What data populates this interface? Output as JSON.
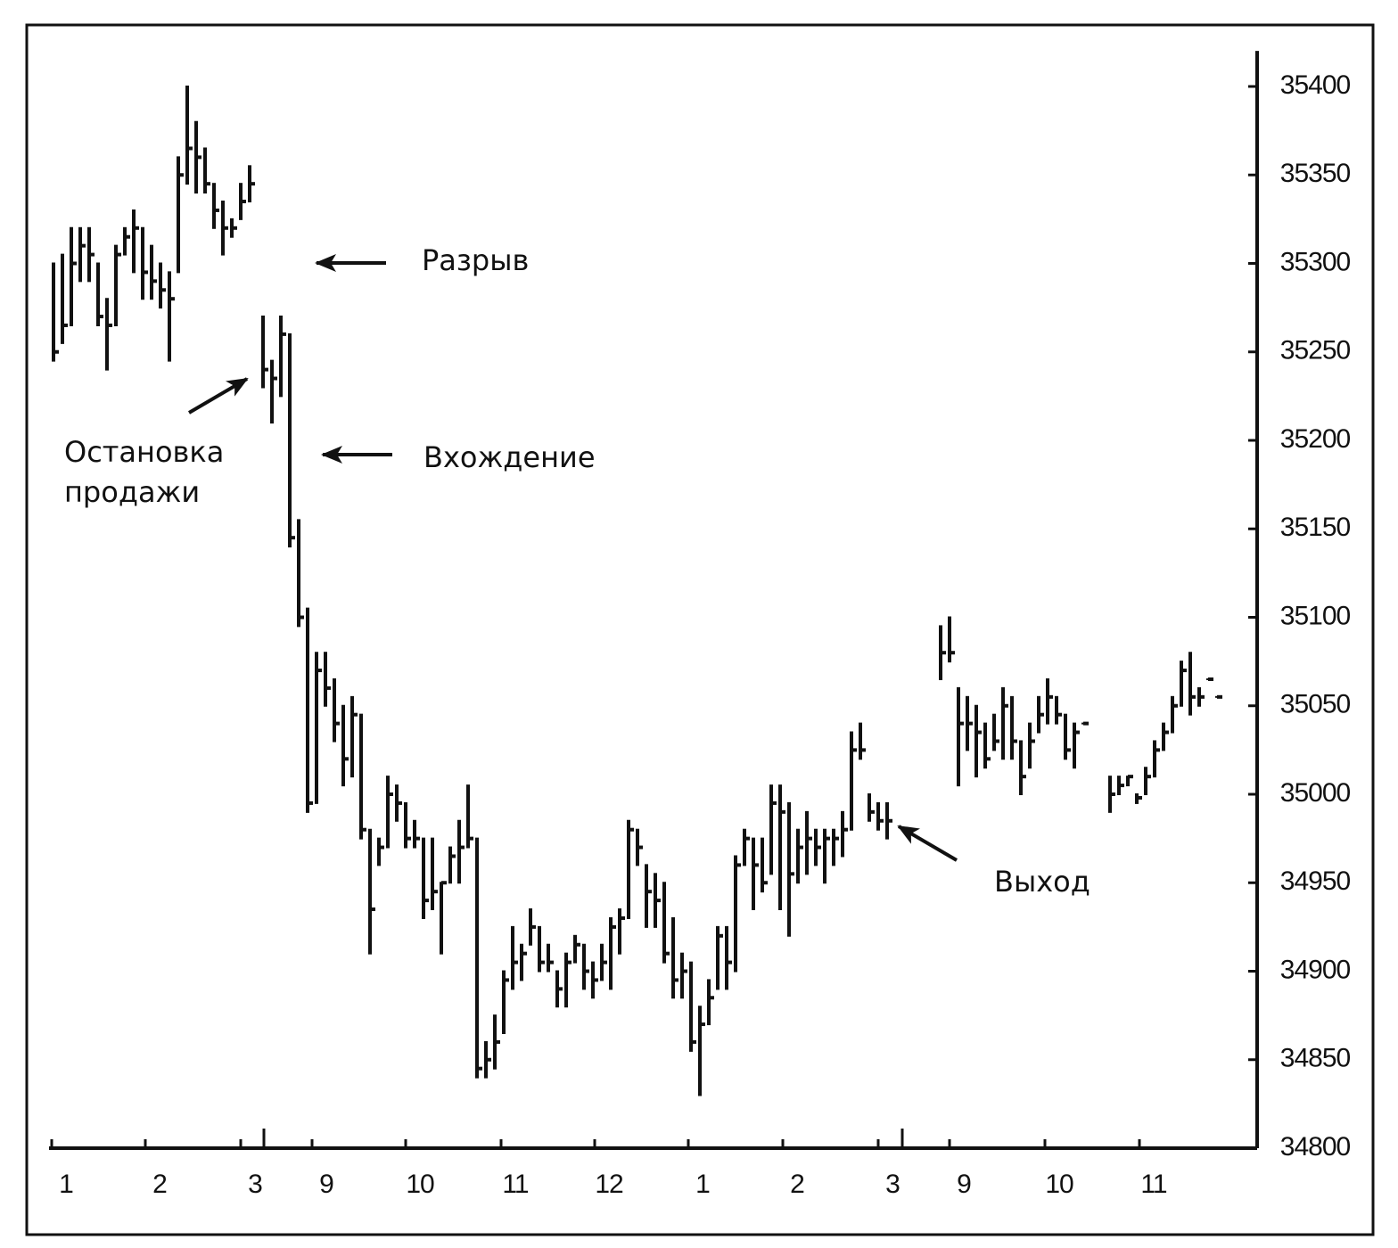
{
  "chart_data": {
    "type": "ohlc",
    "x": [
      0.5,
      1.5,
      2.5,
      3.5,
      4.5,
      5.5,
      6.5,
      7.5,
      8.5,
      9.5,
      10.5,
      11.5,
      12.5,
      13.5,
      14.5,
      15.5,
      16.5,
      17.5,
      18.5,
      19.5,
      20.5,
      21.5,
      22.5,
      24,
      25,
      26,
      27,
      28,
      29,
      30,
      31,
      32,
      33,
      34,
      35,
      36,
      37,
      38,
      39,
      40,
      41,
      42,
      43,
      44,
      45,
      46,
      47,
      48,
      49,
      50,
      51,
      52,
      53,
      54,
      55,
      56,
      57,
      58,
      59,
      60,
      61,
      62,
      63,
      64,
      65,
      66,
      67,
      68,
      69,
      70,
      71,
      72,
      73,
      74,
      75,
      76,
      77,
      78,
      79,
      80,
      81,
      82,
      83,
      84,
      85,
      86,
      87,
      88,
      89,
      90,
      91,
      92,
      93,
      94,
      100,
      101,
      102,
      103,
      104,
      105,
      106,
      107,
      108,
      109,
      110,
      111,
      112,
      113,
      114,
      115,
      116,
      119,
      120,
      121,
      122,
      123,
      124,
      125,
      126,
      127,
      128,
      129,
      130,
      131
    ],
    "high": [
      35300,
      35305,
      35320,
      35320,
      35320,
      35300,
      35280,
      35310,
      35320,
      35330,
      35320,
      35310,
      35300,
      35295,
      35360,
      35400,
      35380,
      35365,
      35345,
      35335,
      35325,
      35345,
      35355,
      35270,
      35245,
      35270,
      35260,
      35155,
      35105,
      35080,
      35080,
      35065,
      35050,
      35055,
      35045,
      34980,
      34975,
      35010,
      35005,
      34995,
      34985,
      34975,
      34975,
      34950,
      34970,
      34985,
      35005,
      34975,
      34860,
      34875,
      34900,
      34925,
      34915,
      34935,
      34925,
      34915,
      34900,
      34910,
      34920,
      34915,
      34905,
      34915,
      34930,
      34935,
      34985,
      34980,
      34960,
      34955,
      34950,
      34930,
      34910,
      34905,
      34880,
      34895,
      34925,
      34925,
      34965,
      34980,
      34975,
      34975,
      35005,
      35005,
      34995,
      34980,
      34990,
      34980,
      34980,
      34980,
      34990,
      35035,
      35040,
      35000,
      34995,
      34995,
      35095,
      35100,
      35060,
      35055,
      35050,
      35040,
      35045,
      35060,
      35055,
      35030,
      35040,
      35055,
      35065,
      35055,
      35045,
      35040,
      35040,
      35010,
      35010,
      35010,
      35000,
      35015,
      35030,
      35040,
      35055,
      35075,
      35080,
      35060,
      35065,
      35055
    ],
    "low": [
      35245,
      35255,
      35265,
      35290,
      35290,
      35265,
      35240,
      35265,
      35305,
      35295,
      35280,
      35280,
      35275,
      35245,
      35295,
      35345,
      35340,
      35340,
      35320,
      35305,
      35315,
      35325,
      35335,
      35230,
      35210,
      35225,
      35140,
      35095,
      34990,
      34995,
      35050,
      35030,
      35005,
      35010,
      34975,
      34910,
      34960,
      34970,
      34985,
      34970,
      34970,
      34930,
      34935,
      34910,
      34950,
      34950,
      34970,
      34840,
      34840,
      34845,
      34865,
      34890,
      34895,
      34915,
      34900,
      34900,
      34880,
      34880,
      34905,
      34890,
      34885,
      34895,
      34890,
      34910,
      34930,
      34960,
      34925,
      34925,
      34905,
      34885,
      34885,
      34855,
      34830,
      34870,
      34890,
      34890,
      34900,
      34960,
      34935,
      34945,
      34955,
      34935,
      34920,
      34950,
      34955,
      34960,
      34950,
      34960,
      34965,
      34980,
      35020,
      34985,
      34980,
      34975,
      35065,
      35075,
      35005,
      35025,
      35010,
      35015,
      35025,
      35020,
      35020,
      35000,
      35015,
      35035,
      35040,
      35040,
      35020,
      35015,
      35040,
      34990,
      35000,
      35005,
      34995,
      35000,
      35010,
      35025,
      35035,
      35050,
      35045,
      35050,
      35065,
      35055
    ],
    "close": [
      35250,
      35265,
      35300,
      35310,
      35305,
      35270,
      35265,
      35305,
      35315,
      35320,
      35295,
      35290,
      35285,
      35280,
      35350,
      35365,
      35360,
      35345,
      35330,
      35320,
      35320,
      35335,
      35345,
      35240,
      35235,
      35260,
      35145,
      35100,
      34995,
      35070,
      35060,
      35040,
      35020,
      35045,
      34980,
      34935,
      34970,
      35000,
      34995,
      34975,
      34975,
      34940,
      34945,
      34950,
      34965,
      34970,
      34975,
      34845,
      34850,
      34860,
      34895,
      34905,
      34910,
      34925,
      34905,
      34905,
      34890,
      34905,
      34915,
      34900,
      34895,
      34905,
      34925,
      34930,
      34980,
      34970,
      34945,
      34940,
      34910,
      34895,
      34900,
      34860,
      34870,
      34885,
      34920,
      34905,
      34960,
      34975,
      34960,
      34950,
      34995,
      34990,
      34955,
      34970,
      34975,
      34970,
      34975,
      34975,
      34980,
      35025,
      35025,
      34990,
      34985,
      34985,
      35080,
      35080,
      35040,
      35040,
      35035,
      35020,
      35030,
      35050,
      35030,
      35010,
      35030,
      35045,
      35055,
      35045,
      35025,
      35035,
      35040,
      35000,
      35005,
      35010,
      34998,
      35010,
      35025,
      35035,
      35050,
      35070,
      35055,
      35055,
      35065,
      35055
    ],
    "xlim": [
      0,
      135.5
    ],
    "ylim": [
      34800,
      35410
    ],
    "yticks": [
      34800,
      34850,
      34900,
      34950,
      35000,
      35050,
      35100,
      35150,
      35200,
      35250,
      35300,
      35350,
      35400
    ],
    "xticks": [
      {
        "value": 0.3,
        "label": "1"
      },
      {
        "value": 10.8,
        "label": "2"
      },
      {
        "value": 21.5,
        "label": "3"
      },
      {
        "value": 29.5,
        "label": "9"
      },
      {
        "value": 40,
        "label": "10"
      },
      {
        "value": 50.7,
        "label": "11"
      },
      {
        "value": 61.2,
        "label": "12"
      },
      {
        "value": 71.7,
        "label": "1"
      },
      {
        "value": 82.3,
        "label": "2"
      },
      {
        "value": 93,
        "label": "3"
      },
      {
        "value": 101,
        "label": "9"
      },
      {
        "value": 111.7,
        "label": "10"
      },
      {
        "value": 122.3,
        "label": "11"
      }
    ],
    "session_breaks": [
      24.1,
      95.7
    ],
    "color": "#111111",
    "annotations": {
      "gap": "Разрыв",
      "stop": [
        "Остановка",
        "продажи"
      ],
      "entry": "Вхождение",
      "exit": "Выход"
    }
  }
}
